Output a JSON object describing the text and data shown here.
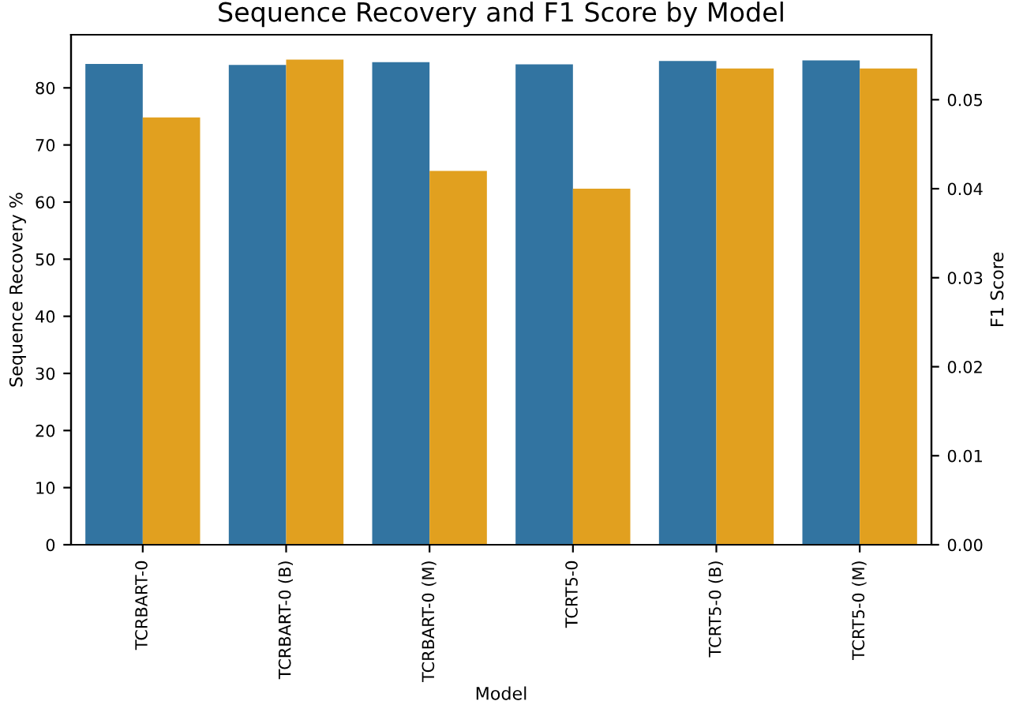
{
  "chart_data": {
    "type": "bar",
    "title": "Sequence Recovery and F1 Score by Model",
    "xlabel": "Model",
    "ylabel": "Sequence Recovery %",
    "y2label": "F1 Score",
    "categories": [
      "TCRBART-0",
      "TCRBART-0 (B)",
      "TCRBART-0 (M)",
      "TCRT5-0",
      "TCRT5-0 (B)",
      "TCRT5-0 (M)"
    ],
    "series": [
      {
        "color": "#3274a1",
        "values": [
          84.2,
          84.0,
          84.5,
          84.1,
          84.7,
          84.8
        ]
      },
      {
        "color": "#e1a01f",
        "axis": "y2",
        "values": [
          0.048,
          0.0545,
          0.042,
          0.04,
          0.0535,
          0.0535
        ]
      }
    ],
    "ylim": [
      0,
      89.3
    ],
    "yticks": [
      0,
      10,
      20,
      30,
      40,
      50,
      60,
      70,
      80
    ],
    "y2lim": [
      0,
      0.0573
    ],
    "y2ticks": [
      {
        "value": 0,
        "label": "0.00"
      },
      {
        "value": 0.01,
        "label": "0.01"
      },
      {
        "value": 0.02,
        "label": "0.02"
      },
      {
        "value": 0.03,
        "label": "0.03"
      },
      {
        "value": 0.04,
        "label": "0.04"
      },
      {
        "value": 0.05,
        "label": "0.05"
      }
    ],
    "grid": false,
    "legend": false
  }
}
